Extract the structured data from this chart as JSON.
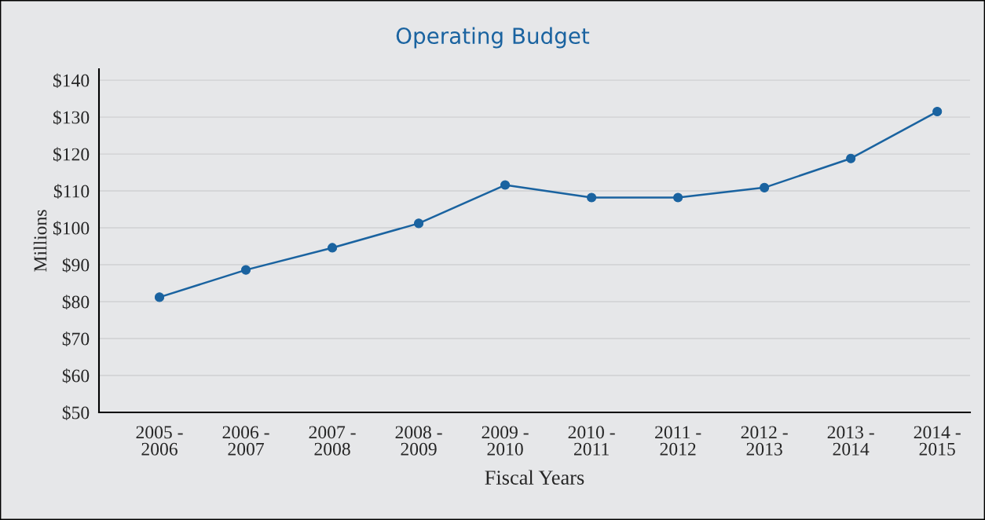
{
  "chart_data": {
    "type": "line",
    "title": "Operating Budget",
    "xlabel": "Fiscal Years",
    "ylabel": "Millions",
    "categories": [
      "2005 -\n2006",
      "2006 -\n2007",
      "2007 -\n2008",
      "2008 -\n2009",
      "2009 -\n2010",
      "2010 -\n2011",
      "2011 -\n2012",
      "2012 -\n2013",
      "2013 -\n2014",
      "2014 -\n2015"
    ],
    "series": [
      {
        "color": "#1a63a0",
        "values": [
          81.2,
          88.6,
          94.6,
          101.2,
          111.6,
          108.2,
          108.2,
          110.9,
          118.8,
          131.5
        ]
      }
    ],
    "ylim": [
      50,
      143
    ],
    "yticks": [
      {
        "value": 50,
        "label": "$50"
      },
      {
        "value": 60,
        "label": "$60"
      },
      {
        "value": 70,
        "label": "$70"
      },
      {
        "value": 80,
        "label": "$80"
      },
      {
        "value": 90,
        "label": "$90"
      },
      {
        "value": 100,
        "label": "$100"
      },
      {
        "value": 110,
        "label": "$110"
      },
      {
        "value": 120,
        "label": "$120"
      },
      {
        "value": 130,
        "label": "$130"
      },
      {
        "value": 140,
        "label": "$140"
      }
    ],
    "grid": "y",
    "marker": "circle",
    "line_style": "solid",
    "legend": false
  }
}
